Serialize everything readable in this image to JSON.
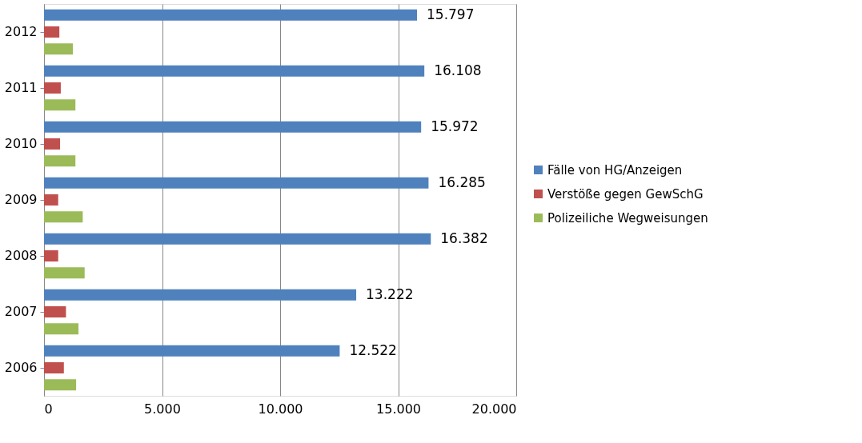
{
  "chart_data": {
    "type": "bar",
    "orientation": "horizontal",
    "categories": [
      "2012",
      "2011",
      "2010",
      "2009",
      "2008",
      "2007",
      "2006"
    ],
    "series": [
      {
        "name": "Fälle von HG/Anzeigen",
        "color": "#4f81bd",
        "values": [
          15797,
          16108,
          15972,
          16285,
          16382,
          13222,
          12522
        ],
        "value_labels": [
          "15.797",
          "16.108",
          "15.972",
          "16.285",
          "16.382",
          "13.222",
          "12.522"
        ]
      },
      {
        "name": "Verstöße gegen GewSchG",
        "color": "#c0504d",
        "values": [
          650,
          710,
          680,
          600,
          600,
          930,
          840
        ]
      },
      {
        "name": "Polizeiliche Wegweisungen",
        "color": "#9bbb59",
        "values": [
          1220,
          1330,
          1330,
          1640,
          1720,
          1460,
          1360
        ]
      }
    ],
    "xlim": [
      0,
      20000
    ],
    "xticks": [
      0,
      {
        "value": 5000,
        "label": "5.000"
      },
      {
        "value": 10000,
        "label": "10.000"
      },
      {
        "value": 15000,
        "label": "15.000"
      },
      {
        "value": 20000,
        "label": "20.000"
      }
    ],
    "grid": "x",
    "legend": "right"
  }
}
